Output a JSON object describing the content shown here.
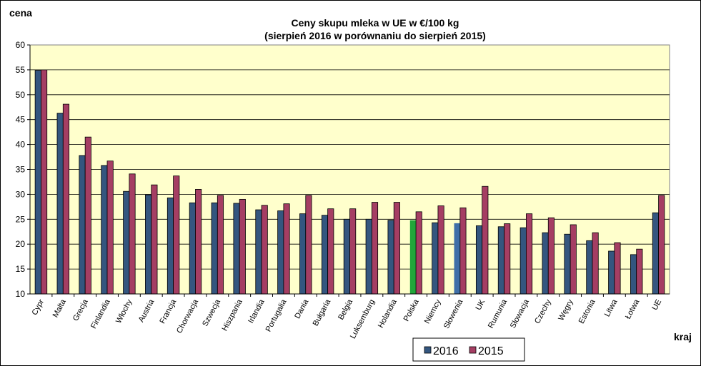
{
  "chart_data": {
    "type": "bar",
    "title_line1": "Ceny skupu mleka  w UE w €/100 kg",
    "title_line2": "(sierpień  2016 w porównaniu do sierpień 2015)",
    "ylabel": "cena",
    "xlabel": "kraj",
    "ylim": [
      10,
      60
    ],
    "yticks": [
      10,
      15,
      20,
      25,
      30,
      35,
      40,
      45,
      50,
      55,
      60
    ],
    "grid": true,
    "legend_position": "bottom-center",
    "categories": [
      "Cypr",
      "Malta",
      "Grecja",
      "Finlandia",
      "Włochy",
      "Austria",
      "Francja",
      "Chorwacja",
      "Szwecja",
      "Hiszpania",
      "Irlandia",
      "Portugalia",
      "Dania",
      "Bułgaria",
      "Belgia",
      "Luksemburg",
      "Holandia",
      "Polska",
      "Niemcy",
      "Słowenia",
      "UK",
      "Rumunia",
      "Słowacja",
      "Czechy",
      "Węgry",
      "Estonia",
      "Litwa",
      "Łotwa",
      "UE"
    ],
    "series": [
      {
        "name": "2016",
        "color": "#34567f",
        "values": [
          54.9,
          46.3,
          37.8,
          35.8,
          30.6,
          29.9,
          29.3,
          28.3,
          28.3,
          28.2,
          26.9,
          26.7,
          26.1,
          25.8,
          25.0,
          25.0,
          24.8,
          24.8,
          24.3,
          24.2,
          23.7,
          23.5,
          23.3,
          22.3,
          22.0,
          20.7,
          18.6,
          17.9,
          26.3
        ],
        "highlight": {
          "Polska": "#22a63a",
          "Słowenia": "#3f6fa8"
        }
      },
      {
        "name": "2015",
        "color": "#a53e63",
        "values": [
          55.0,
          48.1,
          41.5,
          36.7,
          34.1,
          31.9,
          33.7,
          31.0,
          29.8,
          29.0,
          27.8,
          28.1,
          29.8,
          27.1,
          27.1,
          28.4,
          28.4,
          26.5,
          27.7,
          27.3,
          31.6,
          24.1,
          26.1,
          25.3,
          23.9,
          22.3,
          20.3,
          19.0,
          29.8
        ]
      }
    ]
  }
}
